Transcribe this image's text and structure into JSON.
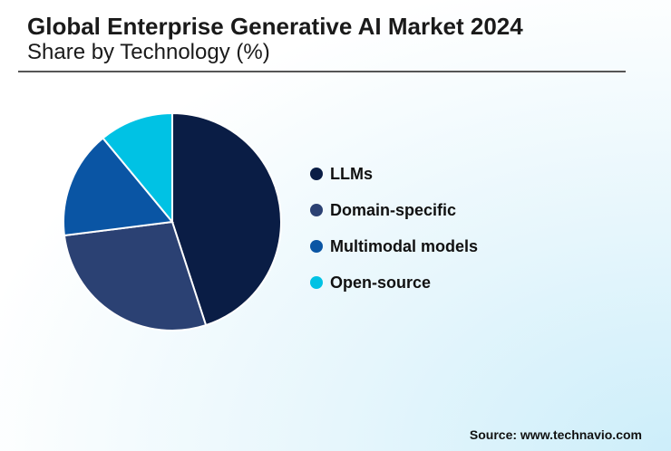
{
  "title": "Global Enterprise Generative AI Market 2024",
  "subtitle": "Share by Technology (%)",
  "source": "Source: www.technavio.com",
  "chart_data": {
    "type": "pie",
    "title": "Global Enterprise Generative AI Market 2024",
    "subtitle": "Share by Technology (%)",
    "categories": [
      "LLMs",
      "Domain-specific",
      "Multimodal models",
      "Open-source"
    ],
    "values": [
      45,
      28,
      16,
      11
    ],
    "colors": [
      "#0a1d45",
      "#2b4173",
      "#0a55a4",
      "#00c2e4"
    ],
    "legend": "right"
  }
}
